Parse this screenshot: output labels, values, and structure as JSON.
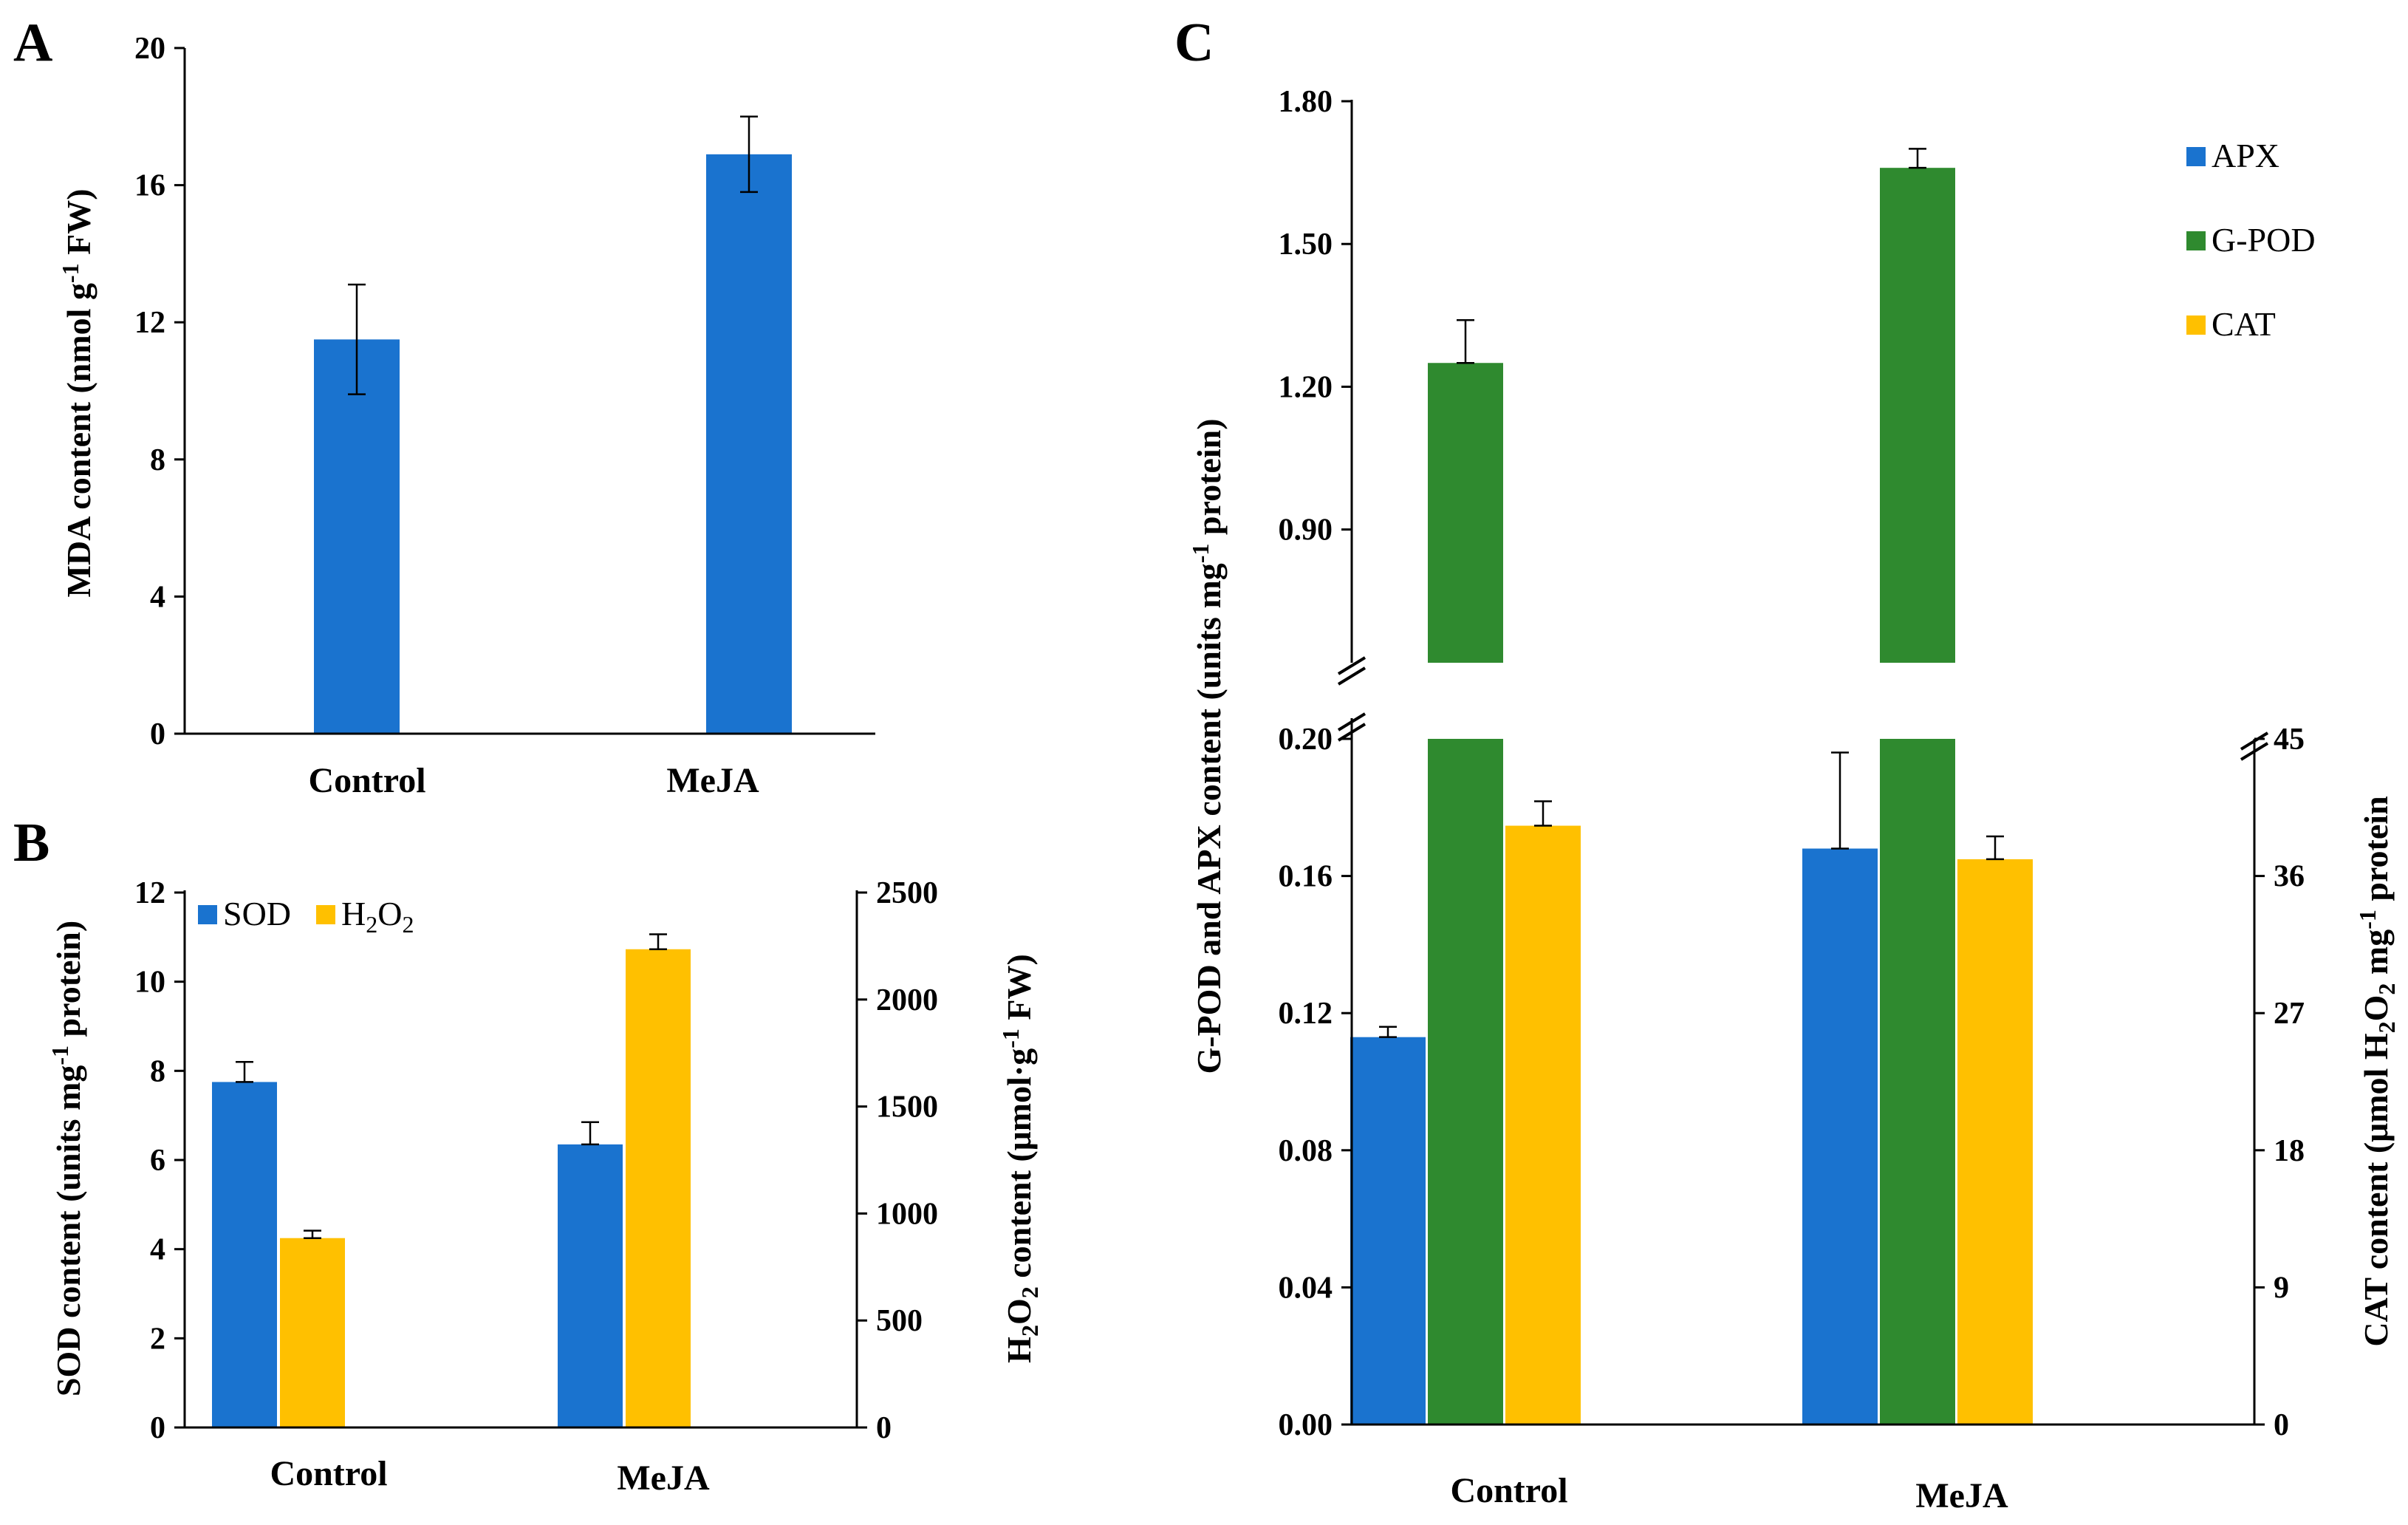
{
  "colors": {
    "blue": "#1a73cf",
    "green": "#2f8a2f",
    "yellow": "#ffc000",
    "axis": "#000000"
  },
  "chart_data": [
    {
      "panel": "A",
      "type": "bar",
      "categories": [
        "Control",
        "MeJA"
      ],
      "series": [
        {
          "name": "MDA",
          "color": "#1a73cf",
          "values": [
            11.5,
            16.9
          ],
          "errors": [
            1.6,
            1.1
          ]
        }
      ],
      "ylim": [
        0,
        20
      ],
      "yticks": [
        "0",
        "4",
        "8",
        "12",
        "16",
        "20"
      ],
      "ylabel": {
        "pre": "MDA content  (nmol  g",
        "sup": "-1",
        "post": " FW)"
      }
    },
    {
      "panel": "B",
      "type": "bar",
      "categories": [
        "Control",
        "MeJA"
      ],
      "legend": [
        {
          "name": "SOD",
          "color": "#1a73cf"
        },
        {
          "name": "H",
          "sub": "2",
          "name2": "O",
          "sub2": "2",
          "color": "#ffc000"
        }
      ],
      "series": [
        {
          "name": "SOD",
          "axis": "left",
          "color": "#1a73cf",
          "values": [
            7.75,
            6.35
          ],
          "errors": [
            0.45,
            0.5
          ]
        },
        {
          "name": "H2O2",
          "axis": "right",
          "color": "#ffc000",
          "values": [
            885,
            2235
          ],
          "errors": [
            35,
            70
          ]
        }
      ],
      "ylim": [
        0,
        12
      ],
      "yticks": [
        "0",
        "2",
        "4",
        "6",
        "8",
        "10",
        "12"
      ],
      "y2lim": [
        0,
        2500
      ],
      "y2ticks": [
        "0",
        "500",
        "1000",
        "1500",
        "2000",
        "2500"
      ],
      "ylabel": {
        "pre": "SOD content  (units  mg",
        "sup": "-1",
        "post": " protein)"
      },
      "y2label": {
        "h": "H",
        "sub": "2",
        "o": "O",
        "sub2": "2",
        "pre": " content  (μmol·g",
        "sup": "-1",
        "post": "  FW)"
      }
    },
    {
      "panel": "C",
      "type": "bar",
      "categories": [
        "Control",
        "MeJA"
      ],
      "legend": [
        {
          "name": "APX",
          "color": "#1a73cf"
        },
        {
          "name": "G-POD",
          "color": "#2f8a2f"
        },
        {
          "name": "CAT",
          "color": "#ffc000"
        }
      ],
      "series": [
        {
          "name": "APX",
          "axis": "left-lower",
          "color": "#1a73cf",
          "values": [
            0.113,
            0.168
          ],
          "errors": [
            0.003,
            0.028
          ]
        },
        {
          "name": "G-POD",
          "axis": "left-upper",
          "color": "#2f8a2f",
          "values": [
            1.25,
            1.66
          ],
          "errors": [
            0.09,
            0.04
          ]
        },
        {
          "name": "CAT",
          "axis": "right",
          "color": "#ffc000",
          "values": [
            39.3,
            37.1
          ],
          "errors": [
            1.6,
            1.5
          ]
        }
      ],
      "ylim_lower": [
        0,
        0.2
      ],
      "yticks_lower": [
        "0.00",
        "0.04",
        "0.08",
        "0.12",
        "0.16",
        "0.20"
      ],
      "ylim_upper": [
        0.62,
        1.8
      ],
      "yticks_upper": [
        "0.90",
        "1.20",
        "1.50",
        "1.80"
      ],
      "y2lim": [
        0,
        45
      ],
      "y2ticks": [
        "0",
        "9",
        "18",
        "27",
        "36",
        "45"
      ],
      "ylabel": {
        "text": "G-POD  and APX content  (units  mg",
        "sup": "-1",
        "post": " protein)"
      },
      "y2label": {
        "pre": "CAT content  (μmol H",
        "sub": "2",
        "mid": "O",
        "sub2": "2",
        "mid2": " mg",
        "sup": "-1",
        "post": " protein"
      }
    }
  ]
}
